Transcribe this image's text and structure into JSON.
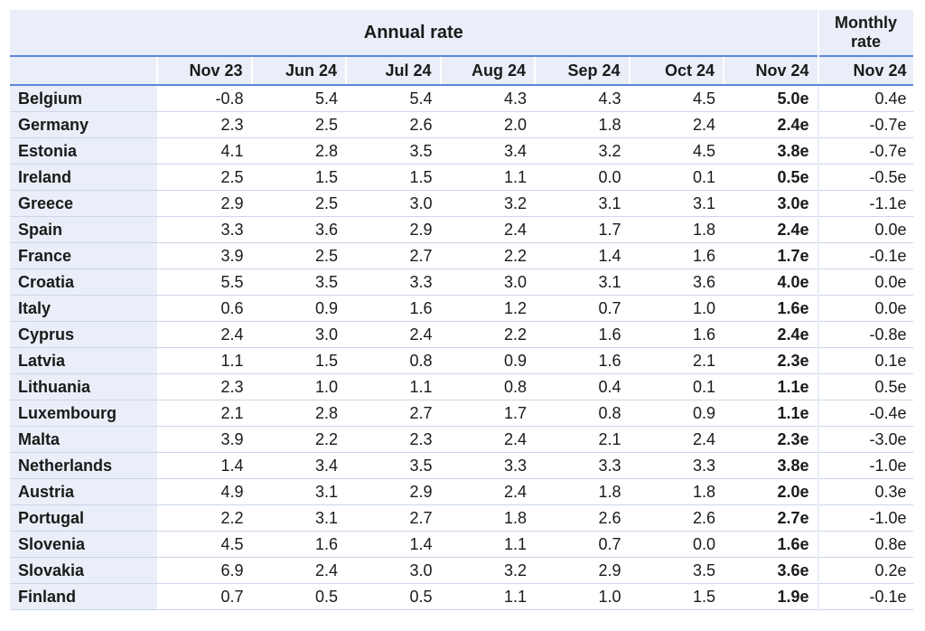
{
  "chart_data": {
    "type": "table",
    "group_headers": {
      "annual": "Annual rate",
      "monthly": "Monthly rate"
    },
    "columns": [
      "Nov 23",
      "Jun 24",
      "Jul 24",
      "Aug 24",
      "Sep 24",
      "Oct 24",
      "Nov 24",
      "Nov 24"
    ],
    "rows": [
      {
        "country": "Belgium",
        "values": [
          "-0.8",
          "5.4",
          "5.4",
          "4.3",
          "4.3",
          "4.5",
          "5.0e",
          "0.4e"
        ]
      },
      {
        "country": "Germany",
        "values": [
          "2.3",
          "2.5",
          "2.6",
          "2.0",
          "1.8",
          "2.4",
          "2.4e",
          "-0.7e"
        ]
      },
      {
        "country": "Estonia",
        "values": [
          "4.1",
          "2.8",
          "3.5",
          "3.4",
          "3.2",
          "4.5",
          "3.8e",
          "-0.7e"
        ]
      },
      {
        "country": "Ireland",
        "values": [
          "2.5",
          "1.5",
          "1.5",
          "1.1",
          "0.0",
          "0.1",
          "0.5e",
          "-0.5e"
        ]
      },
      {
        "country": "Greece",
        "values": [
          "2.9",
          "2.5",
          "3.0",
          "3.2",
          "3.1",
          "3.1",
          "3.0e",
          "-1.1e"
        ]
      },
      {
        "country": "Spain",
        "values": [
          "3.3",
          "3.6",
          "2.9",
          "2.4",
          "1.7",
          "1.8",
          "2.4e",
          "0.0e"
        ]
      },
      {
        "country": "France",
        "values": [
          "3.9",
          "2.5",
          "2.7",
          "2.2",
          "1.4",
          "1.6",
          "1.7e",
          "-0.1e"
        ]
      },
      {
        "country": "Croatia",
        "values": [
          "5.5",
          "3.5",
          "3.3",
          "3.0",
          "3.1",
          "3.6",
          "4.0e",
          "0.0e"
        ]
      },
      {
        "country": "Italy",
        "values": [
          "0.6",
          "0.9",
          "1.6",
          "1.2",
          "0.7",
          "1.0",
          "1.6e",
          "0.0e"
        ]
      },
      {
        "country": "Cyprus",
        "values": [
          "2.4",
          "3.0",
          "2.4",
          "2.2",
          "1.6",
          "1.6",
          "2.4e",
          "-0.8e"
        ]
      },
      {
        "country": "Latvia",
        "values": [
          "1.1",
          "1.5",
          "0.8",
          "0.9",
          "1.6",
          "2.1",
          "2.3e",
          "0.1e"
        ]
      },
      {
        "country": "Lithuania",
        "values": [
          "2.3",
          "1.0",
          "1.1",
          "0.8",
          "0.4",
          "0.1",
          "1.1e",
          "0.5e"
        ]
      },
      {
        "country": "Luxembourg",
        "values": [
          "2.1",
          "2.8",
          "2.7",
          "1.7",
          "0.8",
          "0.9",
          "1.1e",
          "-0.4e"
        ]
      },
      {
        "country": "Malta",
        "values": [
          "3.9",
          "2.2",
          "2.3",
          "2.4",
          "2.1",
          "2.4",
          "2.3e",
          "-3.0e"
        ]
      },
      {
        "country": "Netherlands",
        "values": [
          "1.4",
          "3.4",
          "3.5",
          "3.3",
          "3.3",
          "3.3",
          "3.8e",
          "-1.0e"
        ]
      },
      {
        "country": "Austria",
        "values": [
          "4.9",
          "3.1",
          "2.9",
          "2.4",
          "1.8",
          "1.8",
          "2.0e",
          "0.3e"
        ]
      },
      {
        "country": "Portugal",
        "values": [
          "2.2",
          "3.1",
          "2.7",
          "1.8",
          "2.6",
          "2.6",
          "2.7e",
          "-1.0e"
        ]
      },
      {
        "country": "Slovenia",
        "values": [
          "4.5",
          "1.6",
          "1.4",
          "1.1",
          "0.7",
          "0.0",
          "1.6e",
          "0.8e"
        ]
      },
      {
        "country": "Slovakia",
        "values": [
          "6.9",
          "2.4",
          "3.0",
          "3.2",
          "2.9",
          "3.5",
          "3.6e",
          "0.2e"
        ]
      },
      {
        "country": "Finland",
        "values": [
          "0.7",
          "0.5",
          "0.5",
          "1.1",
          "1.0",
          "1.5",
          "1.9e",
          "-0.1e"
        ]
      }
    ],
    "bold_column_index": 6,
    "colors": {
      "header_bg": "#e9eef8",
      "rule": "#5b86d9",
      "row_line": "#ccd6ea"
    }
  }
}
